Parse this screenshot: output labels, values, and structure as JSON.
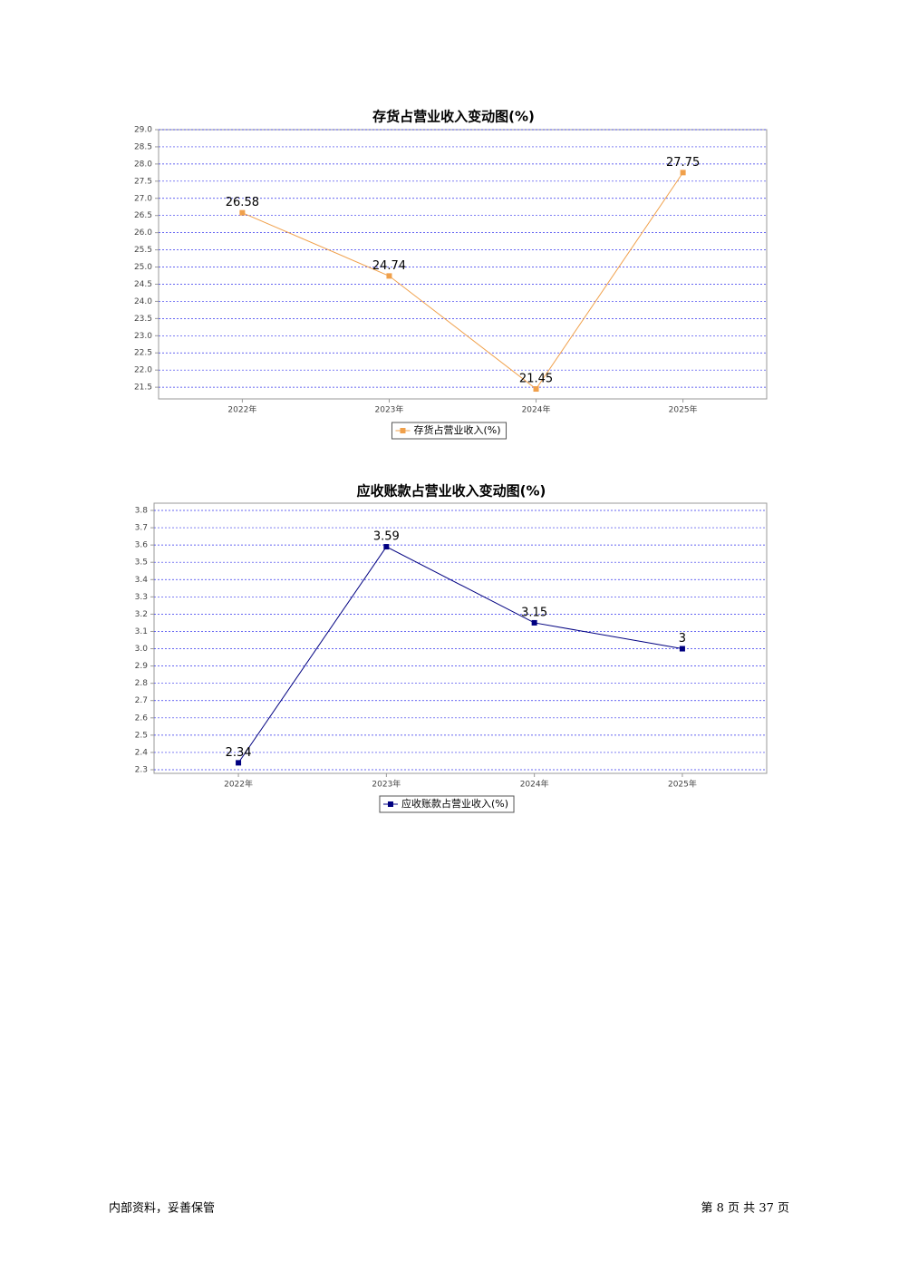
{
  "chart_data": [
    {
      "type": "line",
      "title": "存货占营业收入变动图(%)",
      "categories": [
        "2022年",
        "2023年",
        "2024年",
        "2025年"
      ],
      "series": [
        {
          "name": "存货占营业收入(%)",
          "color": "#f0a04b",
          "values": [
            26.58,
            24.74,
            21.45,
            27.75
          ]
        }
      ],
      "ylim": [
        21.16,
        29.0
      ],
      "yticks": [
        {
          "value": 21.5,
          "label": "21.5"
        },
        {
          "value": 22,
          "label": "22.0"
        },
        22.5,
        {
          "value": 23,
          "label": "23.0"
        },
        23.5,
        {
          "value": 24,
          "label": "24.0"
        },
        24.5,
        {
          "value": 25,
          "label": "25.0"
        },
        25.5,
        {
          "value": 26,
          "label": "26.0"
        },
        26.5,
        {
          "value": 27,
          "label": "27.0"
        },
        27.5,
        {
          "value": 28,
          "label": "28.0"
        },
        28.5,
        {
          "value": 29,
          "label": "29.0"
        }
      ],
      "grid": true
    },
    {
      "type": "line",
      "title": "应收账款占营业收入变动图(%)",
      "categories": [
        "2022年",
        "2023年",
        "2024年",
        "2025年"
      ],
      "series": [
        {
          "name": "应收账款占营业收入(%)",
          "color": "#000080",
          "values": [
            2.34,
            3.59,
            3.15,
            3
          ]
        }
      ],
      "ylim": [
        2.279,
        3.842
      ],
      "yticks": [
        2.3,
        2.4,
        2.5,
        2.6,
        2.7,
        2.8,
        2.9,
        {
          "value": 3,
          "label": "3.0"
        },
        3.1,
        3.2,
        3.3,
        3.4,
        3.5,
        3.6,
        3.7,
        3.8
      ],
      "grid": true
    }
  ],
  "footer": {
    "note": "内部资料，妥善保管",
    "page": "第 8 页 共 37 页"
  }
}
